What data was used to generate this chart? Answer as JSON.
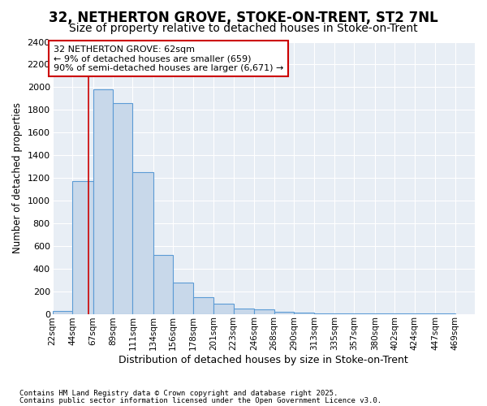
{
  "title1": "32, NETHERTON GROVE, STOKE-ON-TRENT, ST2 7NL",
  "title2": "Size of property relative to detached houses in Stoke-on-Trent",
  "xlabel": "Distribution of detached houses by size in Stoke-on-Trent",
  "ylabel": "Number of detached properties",
  "bin_edges": [
    22,
    44,
    67,
    89,
    111,
    134,
    156,
    178,
    201,
    223,
    246,
    268,
    290,
    313,
    335,
    357,
    380,
    402,
    424,
    447,
    469
  ],
  "bin_labels": [
    "22sqm",
    "44sqm",
    "67sqm",
    "89sqm",
    "111sqm",
    "134sqm",
    "156sqm",
    "178sqm",
    "201sqm",
    "223sqm",
    "246sqm",
    "268sqm",
    "290sqm",
    "313sqm",
    "335sqm",
    "357sqm",
    "380sqm",
    "402sqm",
    "424sqm",
    "447sqm",
    "469sqm"
  ],
  "bar_heights": [
    22,
    1170,
    1980,
    1860,
    1250,
    520,
    275,
    150,
    90,
    45,
    38,
    15,
    8,
    5,
    3,
    2,
    1,
    1,
    1,
    1
  ],
  "bar_color": "#c8d8ea",
  "bar_edge_color": "#5b9bd5",
  "property_size": 62,
  "vline_color": "#cc0000",
  "ylim": [
    0,
    2400
  ],
  "yticks": [
    0,
    200,
    400,
    600,
    800,
    1000,
    1200,
    1400,
    1600,
    1800,
    2000,
    2200,
    2400
  ],
  "annotation_text": "32 NETHERTON GROVE: 62sqm\n← 9% of detached houses are smaller (659)\n90% of semi-detached houses are larger (6,671) →",
  "annotation_box_color": "#ffffff",
  "annotation_box_edge": "#cc0000",
  "footer1": "Contains HM Land Registry data © Crown copyright and database right 2025.",
  "footer2": "Contains public sector information licensed under the Open Government Licence v3.0.",
  "fig_bg_color": "#ffffff",
  "plot_bg_color": "#e8eef5",
  "grid_color": "#ffffff",
  "title_fontsize": 12,
  "subtitle_fontsize": 10
}
